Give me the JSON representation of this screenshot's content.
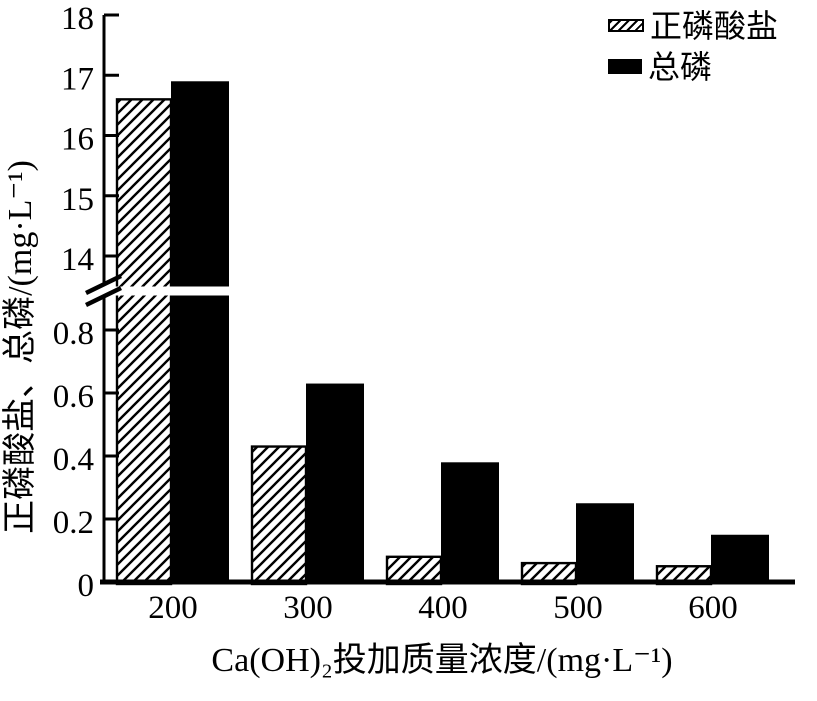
{
  "chart_data": {
    "type": "bar",
    "title": "",
    "categories": [
      "200",
      "300",
      "400",
      "500",
      "600"
    ],
    "series": [
      {
        "name": "正磷酸盐",
        "style": "hatched-diagonal",
        "values": [
          16.6,
          0.43,
          0.08,
          0.06,
          0.05
        ]
      },
      {
        "name": "总磷",
        "style": "solid-black",
        "values": [
          16.9,
          0.63,
          0.38,
          0.25,
          0.15
        ]
      }
    ],
    "xlabel": "Ca(OH)₂投加质量浓度/(mg·L⁻¹)",
    "ylabel": "正磷酸盐、总磷/(mg·L⁻¹)",
    "y_axis": {
      "broken": true,
      "lower_ticks": [
        "0",
        "0.2",
        "0.4",
        "0.6",
        "0.8"
      ],
      "upper_ticks": [
        "14",
        "15",
        "16",
        "17",
        "18"
      ],
      "lower_range": [
        0,
        0.9
      ],
      "upper_range": [
        13.55,
        18
      ]
    },
    "legend": {
      "position": "top-right",
      "items": [
        "正磷酸盐",
        "总磷"
      ]
    },
    "grid": false,
    "colors": {
      "foreground": "#000000",
      "background": "#ffffff"
    }
  }
}
